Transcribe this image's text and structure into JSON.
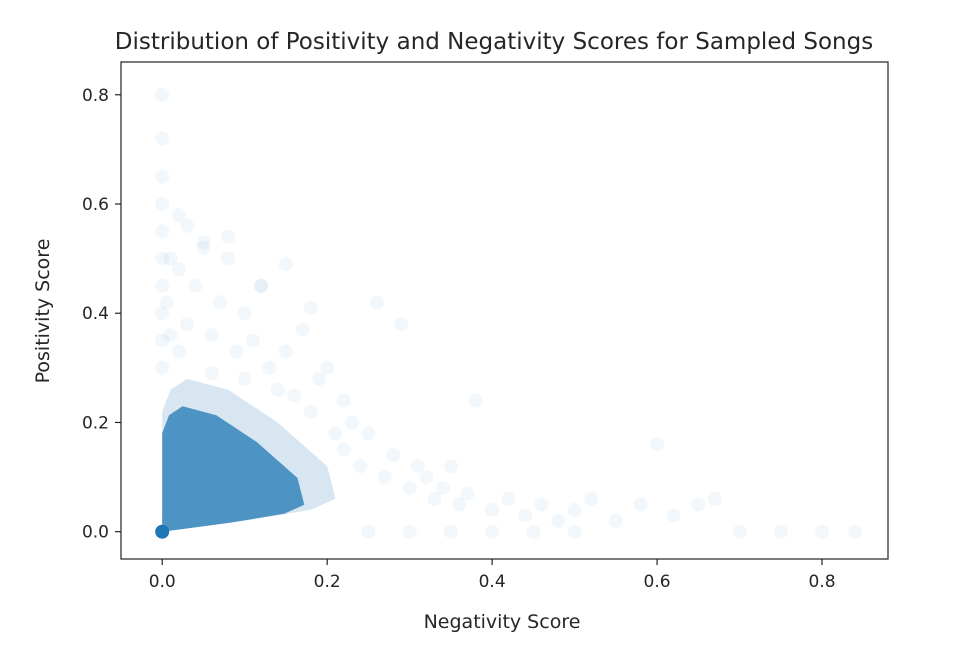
{
  "chart_data": {
    "type": "scatter",
    "title": "Distribution of Positivity and Negativity Scores for Sampled Songs",
    "xlabel": "Negativity Score",
    "ylabel": "Positivity Score",
    "xlim": [
      -0.05,
      0.88
    ],
    "ylim": [
      -0.05,
      0.86
    ],
    "xticks": [
      0.0,
      0.2,
      0.4,
      0.6,
      0.8
    ],
    "yticks": [
      0.0,
      0.2,
      0.4,
      0.6,
      0.8
    ],
    "xtick_labels": [
      "0.0",
      "0.2",
      "0.4",
      "0.6",
      "0.8"
    ],
    "ytick_labels": [
      "0.0",
      "0.2",
      "0.4",
      "0.6",
      "0.8"
    ],
    "grid": false,
    "legend": "none",
    "marker_color": "#1f77b4",
    "marker_alpha": 0.02,
    "dense_core": [
      [
        0.0,
        0.0
      ],
      [
        0.0,
        0.22
      ],
      [
        0.01,
        0.26
      ],
      [
        0.03,
        0.28
      ],
      [
        0.08,
        0.26
      ],
      [
        0.14,
        0.2
      ],
      [
        0.2,
        0.12
      ],
      [
        0.21,
        0.06
      ],
      [
        0.18,
        0.04
      ],
      [
        0.1,
        0.02
      ],
      [
        0.0,
        0.0
      ]
    ],
    "series": [
      {
        "x": [
          0.0,
          0.0,
          0.0,
          0.0,
          0.0,
          0.0,
          0.0,
          0.0,
          0.0,
          0.0,
          0.005,
          0.01,
          0.01,
          0.02,
          0.02,
          0.03,
          0.03,
          0.04,
          0.05,
          0.06,
          0.06,
          0.07,
          0.08,
          0.09,
          0.1,
          0.1,
          0.11,
          0.12,
          0.13,
          0.14,
          0.15,
          0.16,
          0.17,
          0.18,
          0.19,
          0.2,
          0.21,
          0.22,
          0.22,
          0.23,
          0.24,
          0.25,
          0.26,
          0.27,
          0.28,
          0.29,
          0.3,
          0.31,
          0.32,
          0.33,
          0.34,
          0.35,
          0.36,
          0.37,
          0.38,
          0.4,
          0.42,
          0.44,
          0.46,
          0.48,
          0.5,
          0.52,
          0.55,
          0.58,
          0.6,
          0.62,
          0.65,
          0.67,
          0.7,
          0.75,
          0.8,
          0.84,
          0.02,
          0.05,
          0.08,
          0.12,
          0.15,
          0.18,
          0.25,
          0.3,
          0.35,
          0.4,
          0.45,
          0.5
        ],
        "y": [
          0.8,
          0.72,
          0.65,
          0.6,
          0.55,
          0.5,
          0.45,
          0.4,
          0.35,
          0.3,
          0.42,
          0.5,
          0.36,
          0.48,
          0.33,
          0.56,
          0.38,
          0.45,
          0.52,
          0.36,
          0.29,
          0.42,
          0.5,
          0.33,
          0.4,
          0.28,
          0.35,
          0.45,
          0.3,
          0.26,
          0.33,
          0.25,
          0.37,
          0.22,
          0.28,
          0.3,
          0.18,
          0.24,
          0.15,
          0.2,
          0.12,
          0.18,
          0.42,
          0.1,
          0.14,
          0.38,
          0.08,
          0.12,
          0.1,
          0.06,
          0.08,
          0.12,
          0.05,
          0.07,
          0.24,
          0.04,
          0.06,
          0.03,
          0.05,
          0.02,
          0.04,
          0.06,
          0.02,
          0.05,
          0.16,
          0.03,
          0.05,
          0.06,
          0.0,
          0.0,
          0.0,
          0.0,
          0.58,
          0.53,
          0.54,
          0.45,
          0.49,
          0.41,
          0.0,
          0.0,
          0.0,
          0.0,
          0.0,
          0.0
        ]
      }
    ]
  }
}
